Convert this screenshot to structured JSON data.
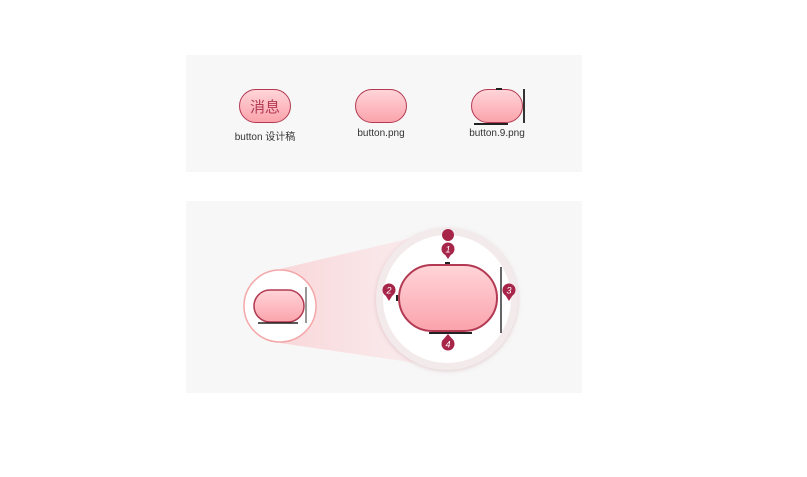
{
  "top": {
    "items": [
      {
        "label": "消息",
        "caption": "button 设计稿"
      },
      {
        "caption": "button.png"
      },
      {
        "caption": "button.9.png"
      }
    ]
  },
  "bottom": {
    "markers": [
      "1",
      "2",
      "3",
      "4"
    ]
  },
  "colors": {
    "accent": "#a8254a",
    "border": "#b23a52",
    "fill_top": "#ffd5d8",
    "fill_bottom": "#fba3ac",
    "panel": "#f7f7f7"
  }
}
